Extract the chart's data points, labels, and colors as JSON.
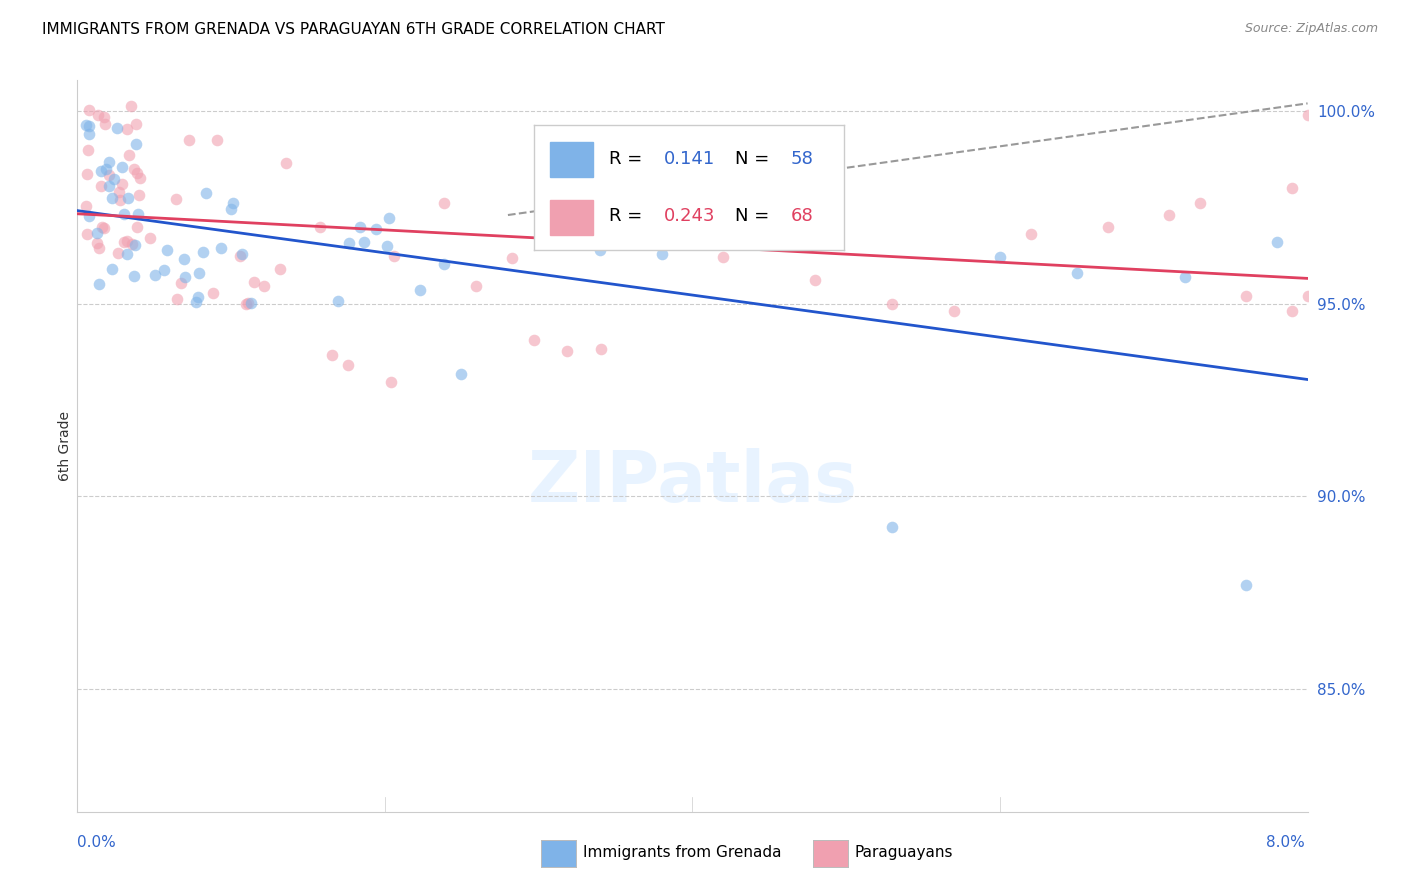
{
  "title": "IMMIGRANTS FROM GRENADA VS PARAGUAYAN 6TH GRADE CORRELATION CHART",
  "source": "Source: ZipAtlas.com",
  "ylabel": "6th Grade",
  "yticks": [
    "85.0%",
    "90.0%",
    "95.0%",
    "100.0%"
  ],
  "ytick_vals": [
    0.85,
    0.9,
    0.95,
    1.0
  ],
  "xmin": 0.0,
  "xmax": 0.08,
  "ymin": 0.818,
  "ymax": 1.008,
  "legend1_R": 0.141,
  "legend1_N": 58,
  "legend2_R": 0.243,
  "legend2_N": 68,
  "color_blue": "#7fb3e8",
  "color_pink": "#f0a0b0",
  "line_blue": "#2255cc",
  "line_pink": "#e04060",
  "line_dashed_color": "#999999",
  "scatter_alpha": 0.6,
  "scatter_size": 70
}
